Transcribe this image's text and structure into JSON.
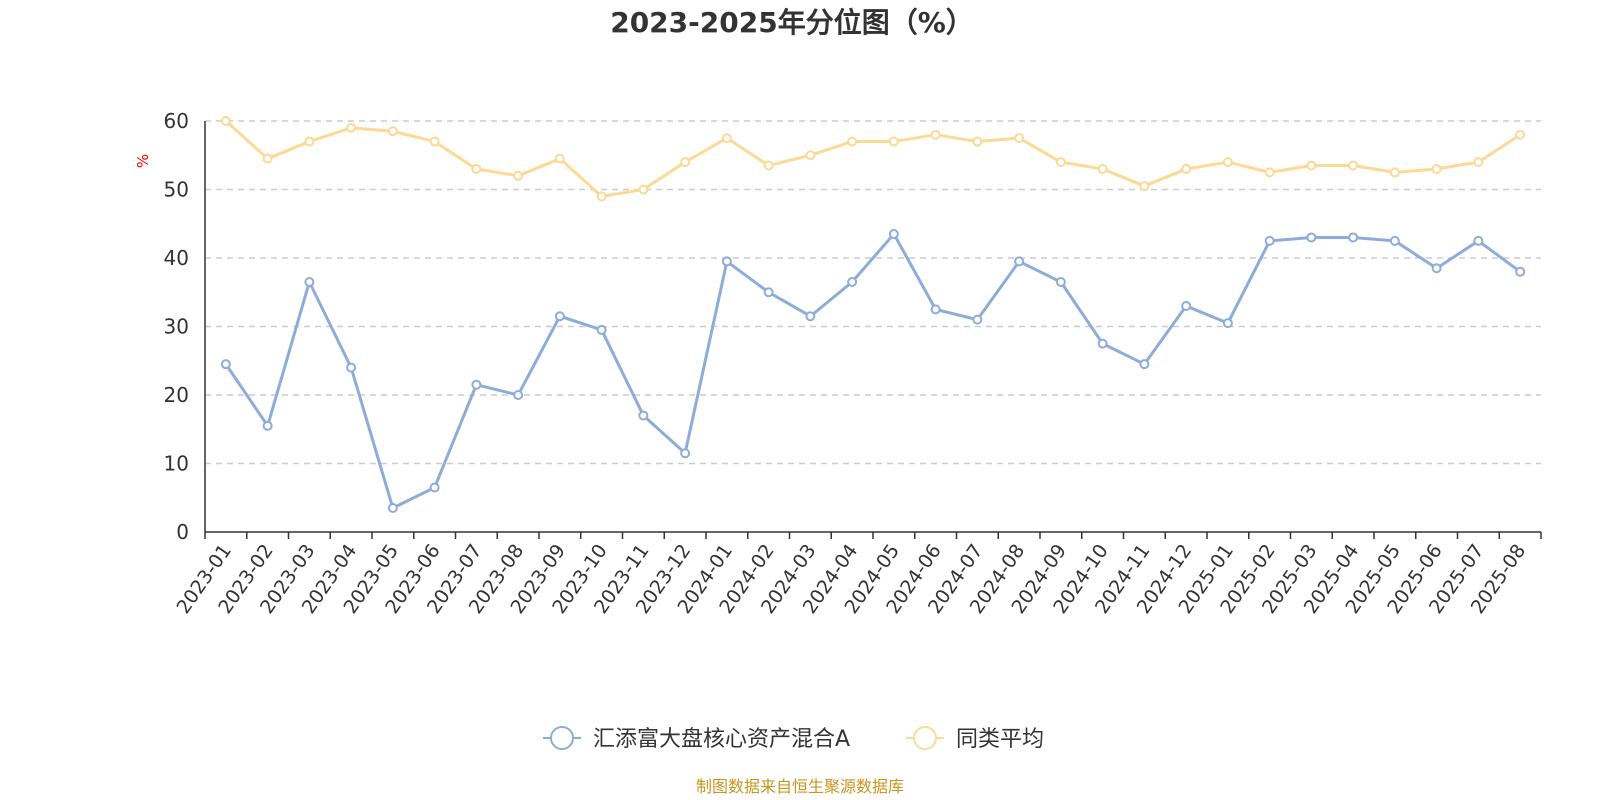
{
  "chart_data": {
    "type": "line",
    "title": "2023-2025年分位图（%）",
    "ylabel": "%",
    "xlabel": "",
    "ylim": [
      0,
      60
    ],
    "yticks": [
      0,
      10,
      20,
      30,
      40,
      50,
      60
    ],
    "grid": "horizontal dashed",
    "legend_position": "bottom-center",
    "categories": [
      "2023-01",
      "2023-02",
      "2023-03",
      "2023-04",
      "2023-05",
      "2023-06",
      "2023-07",
      "2023-08",
      "2023-09",
      "2023-10",
      "2023-11",
      "2023-12",
      "2024-01",
      "2024-02",
      "2024-03",
      "2024-04",
      "2024-05",
      "2024-06",
      "2024-07",
      "2024-08",
      "2024-09",
      "2024-10",
      "2024-11",
      "2024-12",
      "2025-01",
      "2025-02",
      "2025-03",
      "2025-04",
      "2025-05",
      "2025-06",
      "2025-07",
      "2025-08"
    ],
    "series": [
      {
        "name": "汇添富大盘核心资产混合A",
        "color": "#8eacd9",
        "values": [
          24.5,
          15.5,
          36.5,
          24,
          3.5,
          6.5,
          21.5,
          20,
          31.5,
          29.5,
          17,
          11.5,
          39.5,
          35,
          31.5,
          36.5,
          43.5,
          32.5,
          31,
          39.5,
          36.5,
          27.5,
          24.5,
          33,
          30.5,
          42.5,
          43,
          43,
          42.5,
          38.5,
          42.5,
          38
        ]
      },
      {
        "name": "同类平均",
        "color": "#fdd995",
        "values": [
          60,
          54.5,
          57,
          59,
          58.5,
          57,
          53,
          52,
          54.5,
          49,
          50,
          54,
          57.5,
          53.5,
          55,
          57,
          57,
          58,
          57,
          57.5,
          54,
          53,
          50.5,
          53,
          54,
          52.5,
          53.5,
          53.5,
          52.5,
          53,
          54,
          58
        ]
      }
    ]
  },
  "source_text": "制图数据来自恒生聚源数据库"
}
